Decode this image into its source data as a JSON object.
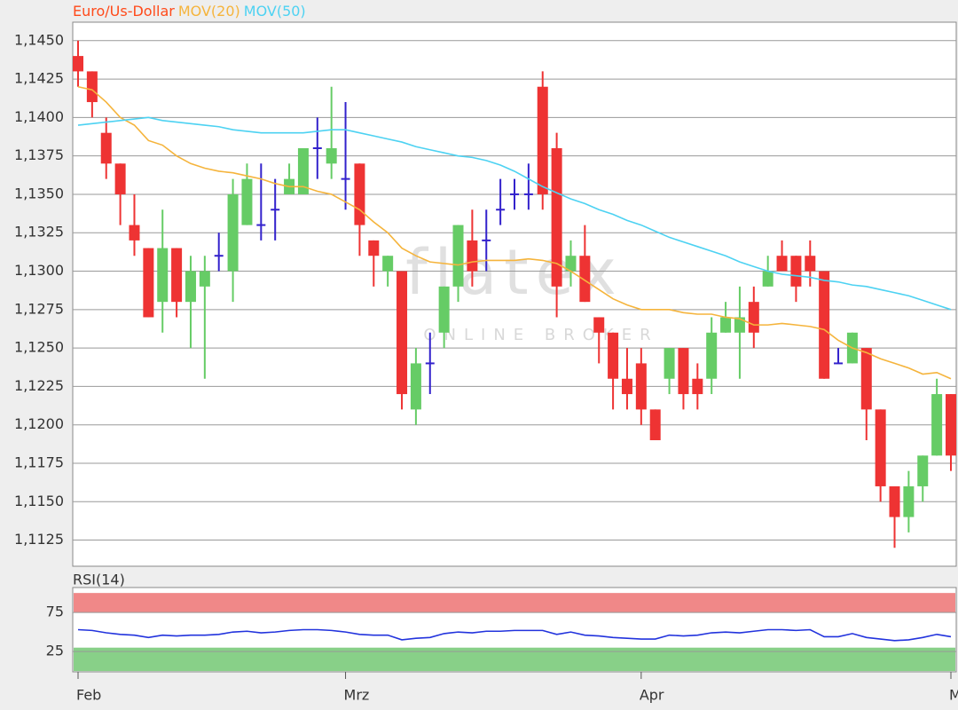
{
  "chart_data": [
    {
      "type": "candlestick",
      "watermark": "flatex",
      "watermark_sub": "ONLINE BROKER",
      "categories": [
        "Feb",
        null,
        null,
        null,
        null,
        null,
        null,
        null,
        null,
        null,
        null,
        null,
        null,
        null,
        null,
        null,
        null,
        null,
        null,
        "Mrz",
        null,
        null,
        null,
        null,
        null,
        null,
        null,
        null,
        null,
        null,
        null,
        null,
        null,
        null,
        null,
        null,
        null,
        null,
        null,
        null,
        "Apr",
        null,
        null,
        null,
        null,
        null,
        null,
        null,
        null,
        null,
        null,
        null,
        null,
        null,
        null,
        null,
        null,
        null,
        null,
        null,
        null,
        null,
        "M"
      ],
      "up_color": "#66cc66",
      "down_color": "#ee3333",
      "doji_color": "#3322cc",
      "ylim": [
        1.1108,
        1.1462
      ],
      "yticks": [
        {
          "value": 1.1125,
          "label": "1,1125"
        },
        {
          "value": 1.115,
          "label": "1,1150"
        },
        {
          "value": 1.1175,
          "label": "1,1175"
        },
        {
          "value": 1.12,
          "label": "1,1200"
        },
        {
          "value": 1.1225,
          "label": "1,1225"
        },
        {
          "value": 1.125,
          "label": "1,1250"
        },
        {
          "value": 1.1275,
          "label": "1,1275"
        },
        {
          "value": 1.13,
          "label": "1,1300"
        },
        {
          "value": 1.1325,
          "label": "1,1325"
        },
        {
          "value": 1.135,
          "label": "1,1350"
        },
        {
          "value": 1.1375,
          "label": "1,1375"
        },
        {
          "value": 1.14,
          "label": "1,1400"
        },
        {
          "value": 1.1425,
          "label": "1,1425"
        },
        {
          "value": 1.145,
          "label": "1,1450"
        }
      ],
      "grid": true,
      "series": [
        {
          "name": "Euro/Us-Dollar",
          "color": "#ff4a1a",
          "open": [
            1.144,
            1.143,
            1.139,
            1.137,
            1.133,
            1.1315,
            1.128,
            1.1315,
            1.128,
            1.129,
            1.131,
            1.13,
            1.133,
            1.133,
            1.134,
            1.135,
            1.135,
            1.138,
            1.137,
            1.136,
            1.137,
            1.132,
            1.13,
            1.13,
            1.121,
            1.124,
            1.126,
            1.129,
            1.132,
            1.132,
            1.134,
            1.135,
            1.135,
            1.142,
            1.138,
            1.13,
            1.131,
            1.127,
            1.126,
            1.123,
            1.124,
            1.121,
            1.123,
            1.125,
            1.123,
            1.123,
            1.126,
            1.126,
            1.128,
            1.129,
            1.131,
            1.131,
            1.131,
            1.13,
            1.124,
            1.124,
            1.125,
            1.121,
            1.116,
            1.114,
            1.116,
            1.118,
            1.122
          ],
          "high": [
            1.145,
            1.143,
            1.14,
            1.137,
            1.135,
            1.1315,
            1.134,
            1.1315,
            1.131,
            1.131,
            1.1325,
            1.136,
            1.137,
            1.137,
            1.136,
            1.137,
            1.138,
            1.14,
            1.142,
            1.141,
            1.137,
            1.132,
            1.131,
            1.13,
            1.125,
            1.126,
            1.129,
            1.133,
            1.134,
            1.134,
            1.136,
            1.136,
            1.137,
            1.143,
            1.139,
            1.132,
            1.133,
            1.127,
            1.126,
            1.125,
            1.125,
            1.121,
            1.125,
            1.125,
            1.124,
            1.127,
            1.128,
            1.129,
            1.129,
            1.131,
            1.132,
            1.131,
            1.132,
            1.13,
            1.125,
            1.126,
            1.125,
            1.121,
            1.116,
            1.117,
            1.118,
            1.123,
            1.122
          ],
          "low": [
            1.142,
            1.14,
            1.136,
            1.133,
            1.131,
            1.127,
            1.126,
            1.127,
            1.125,
            1.123,
            1.13,
            1.128,
            1.133,
            1.132,
            1.132,
            1.135,
            1.135,
            1.136,
            1.136,
            1.134,
            1.131,
            1.129,
            1.129,
            1.121,
            1.12,
            1.122,
            1.125,
            1.128,
            1.129,
            1.13,
            1.133,
            1.134,
            1.134,
            1.134,
            1.127,
            1.129,
            1.128,
            1.124,
            1.121,
            1.121,
            1.12,
            1.119,
            1.122,
            1.121,
            1.121,
            1.122,
            1.126,
            1.123,
            1.125,
            1.129,
            1.13,
            1.128,
            1.129,
            1.123,
            1.124,
            1.124,
            1.119,
            1.115,
            1.112,
            1.113,
            1.115,
            1.118,
            1.117
          ],
          "close": [
            1.143,
            1.141,
            1.137,
            1.135,
            1.132,
            1.127,
            1.1315,
            1.128,
            1.13,
            1.13,
            1.131,
            1.135,
            1.136,
            1.133,
            1.134,
            1.136,
            1.138,
            1.138,
            1.138,
            1.136,
            1.133,
            1.131,
            1.131,
            1.122,
            1.124,
            1.124,
            1.129,
            1.133,
            1.13,
            1.132,
            1.134,
            1.135,
            1.135,
            1.135,
            1.129,
            1.131,
            1.128,
            1.126,
            1.123,
            1.122,
            1.121,
            1.119,
            1.125,
            1.122,
            1.122,
            1.126,
            1.127,
            1.127,
            1.126,
            1.13,
            1.13,
            1.129,
            1.13,
            1.123,
            1.124,
            1.126,
            1.121,
            1.116,
            1.114,
            1.116,
            1.118,
            1.122,
            1.118
          ]
        },
        {
          "name": "MOV(20)",
          "color": "#f5b43c",
          "values": [
            1.142,
            1.1418,
            1.141,
            1.14,
            1.1395,
            1.1385,
            1.1382,
            1.1375,
            1.137,
            1.1367,
            1.1365,
            1.1364,
            1.1362,
            1.136,
            1.1357,
            1.1355,
            1.1355,
            1.1352,
            1.135,
            1.1345,
            1.134,
            1.1332,
            1.1325,
            1.1315,
            1.131,
            1.1306,
            1.1305,
            1.1304,
            1.1306,
            1.1307,
            1.1307,
            1.1307,
            1.1308,
            1.1307,
            1.1305,
            1.13,
            1.1294,
            1.1288,
            1.1282,
            1.1278,
            1.1275,
            1.1275,
            1.1275,
            1.1273,
            1.1272,
            1.1272,
            1.127,
            1.1269,
            1.1265,
            1.1265,
            1.1266,
            1.1265,
            1.1264,
            1.1262,
            1.1255,
            1.125,
            1.1247,
            1.1243,
            1.124,
            1.1237,
            1.1233,
            1.1234,
            1.123
          ]
        },
        {
          "name": "MOV(50)",
          "color": "#4dd2f2",
          "values": [
            1.1395,
            1.1396,
            1.1397,
            1.1398,
            1.1399,
            1.14,
            1.1398,
            1.1397,
            1.1396,
            1.1395,
            1.1394,
            1.1392,
            1.1391,
            1.139,
            1.139,
            1.139,
            1.139,
            1.1391,
            1.1392,
            1.1392,
            1.139,
            1.1388,
            1.1386,
            1.1384,
            1.1381,
            1.1379,
            1.1377,
            1.1375,
            1.1374,
            1.1372,
            1.1369,
            1.1365,
            1.136,
            1.1355,
            1.1351,
            1.1347,
            1.1344,
            1.134,
            1.1337,
            1.1333,
            1.133,
            1.1326,
            1.1322,
            1.1319,
            1.1316,
            1.1313,
            1.131,
            1.1306,
            1.1303,
            1.13,
            1.1298,
            1.1297,
            1.1296,
            1.1294,
            1.1293,
            1.1291,
            1.129,
            1.1288,
            1.1286,
            1.1284,
            1.1281,
            1.1278,
            1.1275
          ]
        }
      ]
    },
    {
      "type": "line",
      "ylim": [
        -1,
        107
      ],
      "yticks": [
        25,
        75
      ],
      "grid": true,
      "upper_band": [
        75,
        100
      ],
      "upper_band_color": "#f08888",
      "lower_band": [
        0,
        30
      ],
      "lower_band_color": "#88d088",
      "series": [
        {
          "name": "RSI(14)",
          "color": "#2233dd",
          "values": [
            53,
            52,
            49,
            47,
            46,
            43,
            46,
            45,
            46,
            46,
            47,
            50,
            51,
            49,
            50,
            52,
            53,
            53,
            52,
            50,
            47,
            46,
            46,
            40,
            42,
            43,
            48,
            50,
            49,
            51,
            51,
            52,
            52,
            52,
            47,
            50,
            46,
            45,
            43,
            42,
            41,
            41,
            46,
            45,
            46,
            49,
            50,
            49,
            51,
            53,
            53,
            52,
            53,
            44,
            44,
            48,
            43,
            41,
            39,
            40,
            43,
            47,
            44
          ]
        }
      ]
    }
  ]
}
